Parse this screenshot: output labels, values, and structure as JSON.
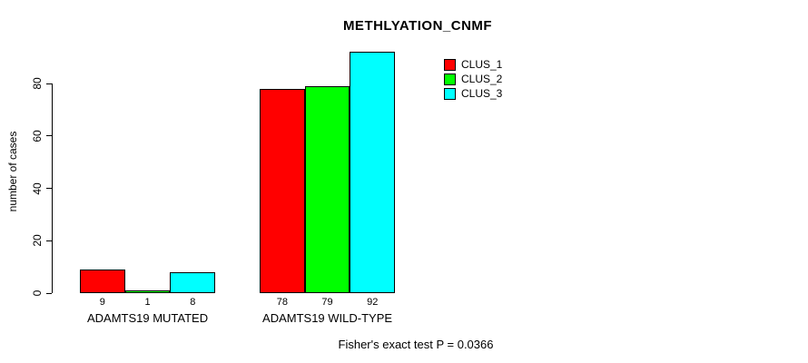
{
  "chart_data": {
    "type": "bar",
    "title": "METHLYATION_CNMF",
    "xlabel": "",
    "ylabel": "number of cases",
    "ylim": [
      0,
      80
    ],
    "yticks": [
      0,
      20,
      40,
      60,
      80
    ],
    "grid": false,
    "legend_position": "top-right",
    "series": [
      {
        "name": "CLUS_1",
        "color": "#ff0000"
      },
      {
        "name": "CLUS_2",
        "color": "#00ff00"
      },
      {
        "name": "CLUS_3",
        "color": "#00ffff"
      }
    ],
    "groups": [
      {
        "label": "ADAMTS19 MUTATED",
        "values": [
          9,
          1,
          8
        ]
      },
      {
        "label": "ADAMTS19 WILD-TYPE",
        "values": [
          78,
          79,
          92
        ]
      }
    ],
    "annotation": "Fisher's exact test P = 0.0366"
  }
}
